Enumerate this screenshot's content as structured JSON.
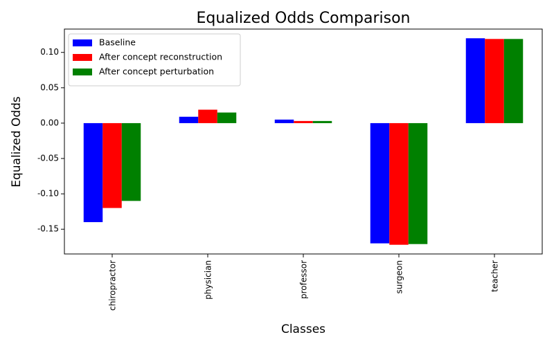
{
  "chart_data": {
    "type": "bar",
    "title": "Equalized Odds Comparison",
    "xlabel": "Classes",
    "ylabel": "Equalized Odds",
    "categories": [
      "chiropractor",
      "physician",
      "professor",
      "surgeon",
      "teacher"
    ],
    "series": [
      {
        "name": "Baseline",
        "color": "#0000ff",
        "values": [
          -0.14,
          0.009,
          0.005,
          -0.17,
          0.12
        ]
      },
      {
        "name": "After concept reconstruction",
        "color": "#ff0000",
        "values": [
          -0.12,
          0.019,
          0.003,
          -0.172,
          0.119
        ]
      },
      {
        "name": "After concept perturbation",
        "color": "#008000",
        "values": [
          -0.11,
          0.015,
          0.003,
          -0.171,
          0.119
        ]
      }
    ],
    "ylim": [
      -0.185,
      0.133
    ],
    "yticks": [
      "-0.15",
      "-0.10",
      "-0.05",
      "0.00",
      "0.05",
      "0.10"
    ],
    "grid": false,
    "legend_position": "top-left"
  }
}
